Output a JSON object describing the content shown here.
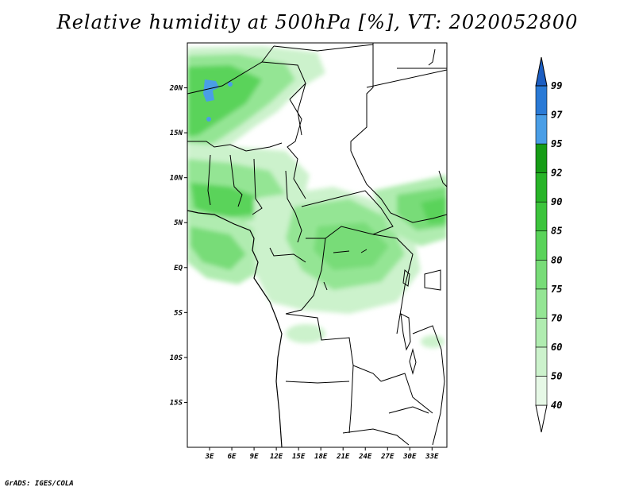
{
  "title": "Relative humidity at 500hPa [%], VT: 2020052800",
  "credit": "GrADS: IGES/COLA",
  "map": {
    "lon_range": [
      0,
      35
    ],
    "lat_range": [
      -20,
      25
    ],
    "lat_ticks": [
      {
        "value": 20,
        "label": "20N"
      },
      {
        "value": 15,
        "label": "15N"
      },
      {
        "value": 10,
        "label": "10N"
      },
      {
        "value": 5,
        "label": "5N"
      },
      {
        "value": 0,
        "label": "EQ"
      },
      {
        "value": -5,
        "label": "5S"
      },
      {
        "value": -10,
        "label": "10S"
      },
      {
        "value": -15,
        "label": "15S"
      }
    ],
    "lon_ticks": [
      {
        "value": 3,
        "label": "3E"
      },
      {
        "value": 6,
        "label": "6E"
      },
      {
        "value": 9,
        "label": "9E"
      },
      {
        "value": 12,
        "label": "12E"
      },
      {
        "value": 15,
        "label": "15E"
      },
      {
        "value": 18,
        "label": "18E"
      },
      {
        "value": 21,
        "label": "21E"
      },
      {
        "value": 24,
        "label": "24E"
      },
      {
        "value": 27,
        "label": "27E"
      },
      {
        "value": 30,
        "label": "30E"
      },
      {
        "value": 33,
        "label": "33E"
      }
    ]
  },
  "colorbar": {
    "levels": [
      {
        "label": "40",
        "color": "#ffffff"
      },
      {
        "label": "50",
        "color": "#e6f8e6"
      },
      {
        "label": "60",
        "color": "#ccf2cc"
      },
      {
        "label": "70",
        "color": "#b0ecb0"
      },
      {
        "label": "75",
        "color": "#94e594"
      },
      {
        "label": "80",
        "color": "#78dc78"
      },
      {
        "label": "85",
        "color": "#5ad35a"
      },
      {
        "label": "90",
        "color": "#3cc43c"
      },
      {
        "label": "92",
        "color": "#28b428"
      },
      {
        "label": "95",
        "color": "#169c16"
      },
      {
        "label": "97",
        "color": "#4a9ee6"
      },
      {
        "label": "99",
        "color": "#2a7ad6"
      }
    ],
    "over_color": "#1c5ec2"
  }
}
